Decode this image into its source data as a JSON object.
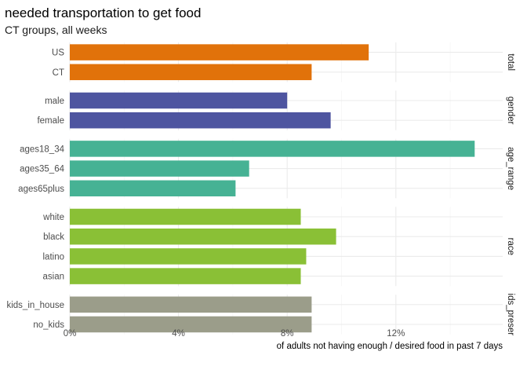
{
  "chart_data": {
    "type": "bar",
    "orientation": "horizontal",
    "title": "needed transportation to get food",
    "subtitle": "CT groups, all weeks",
    "xlabel": "of adults not having enough / desired food in past 7 days",
    "ylabel": "",
    "xlim": [
      0,
      15.2
    ],
    "xticks": [
      0,
      4,
      8,
      12
    ],
    "xtick_labels": [
      "0%",
      "4%",
      "8%",
      "12%"
    ],
    "grid": true,
    "legend": "none",
    "panels": [
      {
        "name": "total",
        "strip_label": "total",
        "color": "#E1720A",
        "categories": [
          "US",
          "CT"
        ],
        "values": [
          11.0,
          8.9
        ]
      },
      {
        "name": "gender",
        "strip_label": "gender",
        "color": "#4E55A0",
        "categories": [
          "male",
          "female"
        ],
        "values": [
          8.0,
          9.6
        ]
      },
      {
        "name": "age_range",
        "strip_label": "age_range",
        "color": "#46B294",
        "categories": [
          "ages18_34",
          "ages35_64",
          "ages65plus"
        ],
        "values": [
          14.9,
          6.6,
          6.1
        ]
      },
      {
        "name": "race",
        "strip_label": "race",
        "color": "#8AC036",
        "categories": [
          "white",
          "black",
          "latino",
          "asian"
        ],
        "values": [
          8.5,
          9.8,
          8.7,
          8.5
        ]
      },
      {
        "name": "kids_present",
        "strip_label": "ids_preser",
        "color": "#9B9D8A",
        "categories": [
          "kids_in_house",
          "no_kids"
        ],
        "values": [
          8.9,
          8.9
        ]
      }
    ]
  }
}
